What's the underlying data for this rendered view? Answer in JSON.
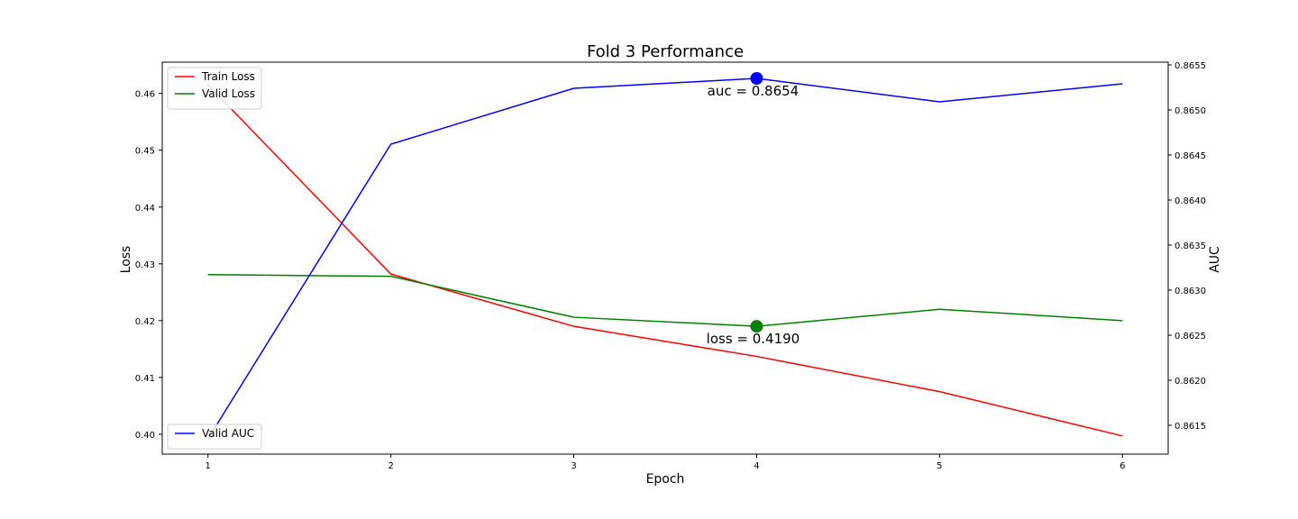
{
  "chart_data": {
    "type": "line",
    "title": "Fold 3 Performance",
    "xlabel": "Epoch",
    "ylabel_left": "Loss",
    "ylabel_right": "AUC",
    "x": [
      1,
      2,
      3,
      4,
      5,
      6
    ],
    "xlim": [
      0.75,
      6.25
    ],
    "ylim_left": [
      0.3965,
      0.4655
    ],
    "ylim_right": [
      0.86118,
      0.86553
    ],
    "x_ticks": [
      "1",
      "2",
      "3",
      "4",
      "5",
      "6"
    ],
    "y_ticks_left": [
      "0.40",
      "0.41",
      "0.42",
      "0.43",
      "0.44",
      "0.45",
      "0.46"
    ],
    "y_ticks_right": [
      "0.8615",
      "0.8620",
      "0.8625",
      "0.8630",
      "0.8635",
      "0.8640",
      "0.8645",
      "0.8650",
      "0.8655"
    ],
    "series": [
      {
        "name": "Train Loss",
        "axis": "left",
        "color": "#ff0000",
        "values": [
          0.4615,
          0.4282,
          0.419,
          0.4137,
          0.4075,
          0.3997
        ]
      },
      {
        "name": "Valid Loss",
        "axis": "left",
        "color": "#008000",
        "values": [
          0.4281,
          0.4278,
          0.4206,
          0.419,
          0.422,
          0.42
        ]
      },
      {
        "name": "Valid AUC",
        "axis": "right",
        "color": "#0000ff",
        "values": [
          0.86135,
          0.86462,
          0.86524,
          0.86535,
          0.86509,
          0.86529
        ]
      }
    ],
    "annotations": [
      {
        "text": "auc = 0.8654",
        "x": 4,
        "y": 0.86535,
        "axis": "right",
        "marker_color": "#0000ff"
      },
      {
        "text": "loss = 0.4190",
        "x": 4,
        "y": 0.419,
        "axis": "left",
        "marker_color": "#008000"
      }
    ],
    "legends": [
      {
        "placement": "top-left",
        "entries": [
          "Train Loss",
          "Valid Loss"
        ]
      },
      {
        "placement": "bottom-left",
        "entries": [
          "Valid AUC"
        ]
      }
    ],
    "grid": false
  }
}
